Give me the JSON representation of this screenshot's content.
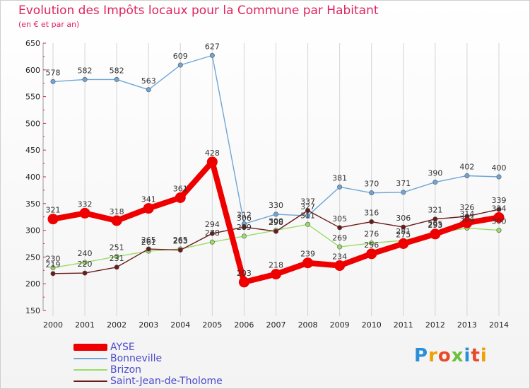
{
  "chart_data": {
    "type": "line",
    "title": "Evolution des Impôts locaux pour la Commune par Habitant",
    "subtitle": "(en € et par an)",
    "x": [
      "2000",
      "2001",
      "2002",
      "2003",
      "2004",
      "2005",
      "2006",
      "2007",
      "2008",
      "2009",
      "2010",
      "2011",
      "2012",
      "2013",
      "2014"
    ],
    "ylim": [
      150,
      650
    ],
    "yticks": [
      150,
      200,
      250,
      300,
      350,
      400,
      450,
      500,
      550,
      600,
      650
    ],
    "grid": "vertical",
    "series": [
      {
        "name": "AYSE",
        "color": "#ee0000",
        "values": [
          321,
          332,
          318,
          341,
          361,
          428,
          203,
          218,
          239,
          234,
          256,
          275,
          293,
          314,
          324
        ],
        "labels": [
          "321",
          "332",
          "318",
          "341",
          "361",
          "428",
          "203",
          "218",
          "239",
          "234",
          "256",
          "275",
          "293",
          "314",
          "324"
        ]
      },
      {
        "name": "Bonneville",
        "color": "#6fa6d6",
        "values": [
          578,
          582,
          582,
          563,
          609,
          627,
          312,
          330,
          327,
          381,
          370,
          371,
          390,
          402,
          400
        ],
        "labels": [
          "578",
          "582",
          "582",
          "563",
          "609",
          "627",
          "312",
          "330",
          "327",
          "381",
          "370",
          "371",
          "390",
          "402",
          "400"
        ]
      },
      {
        "name": "Brizon",
        "color": "#99dd66",
        "values": [
          230,
          240,
          251,
          261,
          265,
          278,
          289,
          300,
          311,
          269,
          276,
          281,
          295,
          304,
          300
        ],
        "labels": [
          "230",
          "240",
          "251",
          "261",
          "265",
          "278",
          "289",
          "300",
          "311",
          "269",
          "276",
          "281",
          "295",
          "304",
          "300"
        ]
      },
      {
        "name": "Saint-Jean-de-Tholome",
        "color": "#6b1a1a",
        "values": [
          219,
          220,
          231,
          265,
          263,
          294,
          306,
          298,
          337,
          305,
          316,
          306,
          321,
          326,
          339
        ],
        "labels": [
          "219",
          "220",
          "231",
          "265",
          "263",
          "294",
          "306",
          "298",
          "337",
          "305",
          "316",
          "306",
          "321",
          "326",
          "339"
        ]
      }
    ]
  },
  "brand": {
    "letters": [
      "P",
      "r",
      "o",
      "x",
      "i",
      "t",
      "i"
    ],
    "colors": [
      "#2a8fd8",
      "#f0a000",
      "#e84a27",
      "#6cbf3b",
      "#2a8fd8",
      "#e84a27",
      "#f0a000"
    ]
  }
}
